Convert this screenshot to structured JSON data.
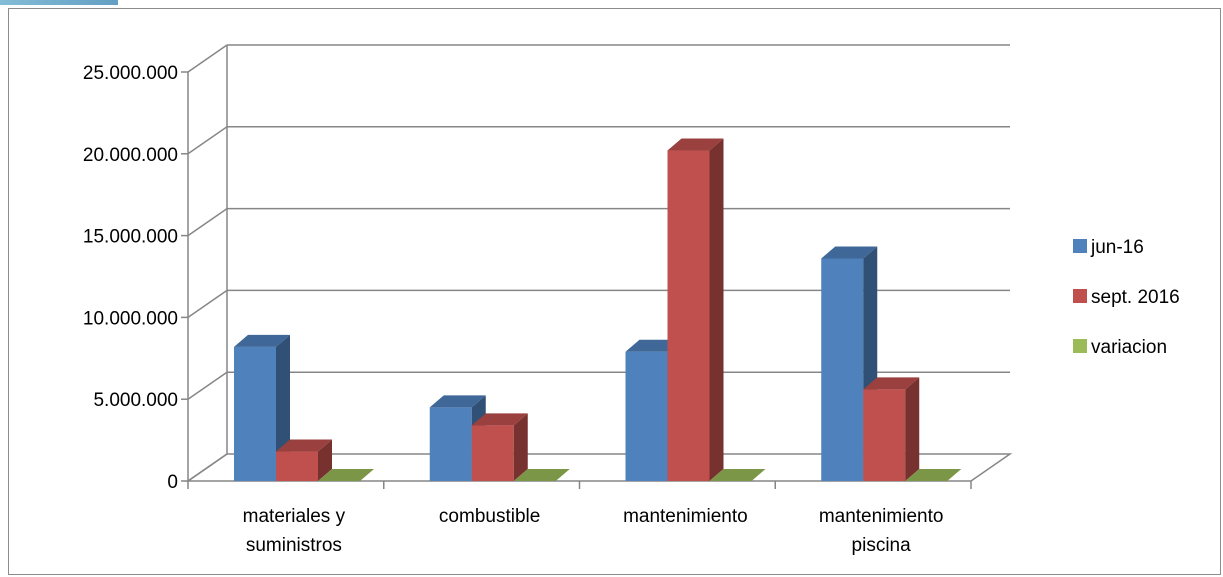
{
  "chart_data": {
    "type": "bar",
    "style": "3d-clustered-column",
    "categories": [
      [
        "materiales y",
        "suministros"
      ],
      [
        "combustible"
      ],
      [
        "mantenimiento"
      ],
      [
        "mantenimiento",
        "piscina"
      ]
    ],
    "series": [
      {
        "name": "jun-16",
        "color": "#4F81BD",
        "values": [
          8200000,
          4500000,
          7900000,
          13600000
        ]
      },
      {
        "name": "sept. 2016",
        "color": "#C0504D",
        "values": [
          1800000,
          3400000,
          20200000,
          5600000
        ]
      },
      {
        "name": "variacion",
        "color": "#9BBB59",
        "values": [
          0,
          0,
          0,
          0
        ]
      }
    ],
    "ylim": [
      0,
      25000000
    ],
    "yticks": [
      0,
      5000000,
      10000000,
      15000000,
      20000000,
      25000000
    ],
    "ytick_labels": [
      "0",
      "5.000.000",
      "10.000.000",
      "15.000.000",
      "20.000.000",
      "25.000.000"
    ],
    "grid": true,
    "legend_position": "right"
  }
}
